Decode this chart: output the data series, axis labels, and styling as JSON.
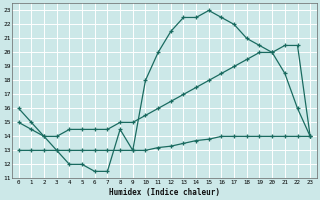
{
  "xlabel": "Humidex (Indice chaleur)",
  "bg_color": "#cce8e8",
  "grid_color": "#ffffff",
  "line_color": "#1a6b60",
  "xlim": [
    -0.5,
    23.5
  ],
  "ylim": [
    11,
    23.5
  ],
  "xticks": [
    0,
    1,
    2,
    3,
    4,
    5,
    6,
    7,
    8,
    9,
    10,
    11,
    12,
    13,
    14,
    15,
    16,
    17,
    18,
    19,
    20,
    21,
    22,
    23
  ],
  "yticks": [
    11,
    12,
    13,
    14,
    15,
    16,
    17,
    18,
    19,
    20,
    21,
    22,
    23
  ],
  "line1_x": [
    0,
    1,
    2,
    3,
    4,
    5,
    6,
    7,
    8,
    9,
    10,
    11,
    12,
    13,
    14,
    15,
    16,
    17,
    18,
    19,
    20,
    21,
    22,
    23
  ],
  "line1_y": [
    16,
    15,
    14,
    13,
    12,
    12,
    11.5,
    11.5,
    14.5,
    13,
    18,
    20,
    21.5,
    22.5,
    22.5,
    23,
    22.5,
    22,
    21,
    20.5,
    20,
    18.5,
    16,
    14
  ],
  "line2_x": [
    0,
    1,
    2,
    3,
    4,
    5,
    6,
    7,
    8,
    9,
    10,
    11,
    12,
    13,
    14,
    15,
    16,
    17,
    18,
    19,
    20,
    21,
    22,
    23
  ],
  "line2_y": [
    15,
    14.5,
    14,
    14,
    14.5,
    14.5,
    14.5,
    14.5,
    15,
    15,
    15.5,
    16,
    16.5,
    17,
    17.5,
    18,
    18.5,
    19,
    19.5,
    20,
    20,
    20.5,
    20.5,
    14
  ],
  "line3_x": [
    0,
    1,
    2,
    3,
    4,
    5,
    6,
    7,
    8,
    9,
    10,
    11,
    12,
    13,
    14,
    15,
    16,
    17,
    18,
    19,
    20,
    21,
    22,
    23
  ],
  "line3_y": [
    13,
    13,
    13,
    13,
    13,
    13,
    13,
    13,
    13,
    13,
    13,
    13.2,
    13.3,
    13.5,
    13.7,
    13.8,
    14,
    14,
    14,
    14,
    14,
    14,
    14,
    14
  ]
}
